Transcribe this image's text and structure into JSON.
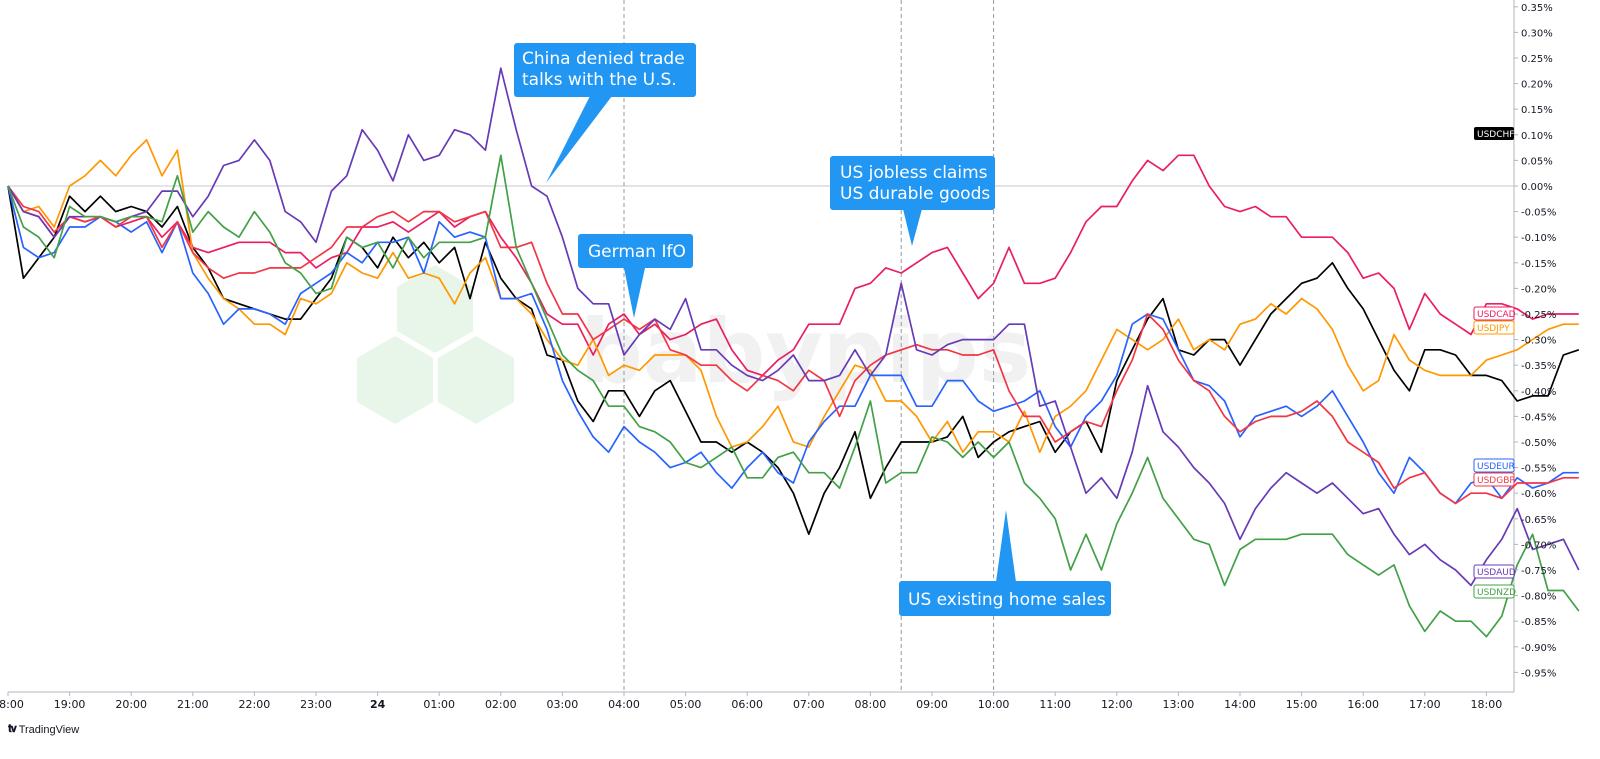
{
  "brand": {
    "name": "TradingView",
    "icon": "tradingview-logo-icon"
  },
  "watermark": {
    "text": "babypips",
    "icon": "hexagon-logo-icon"
  },
  "chart_data": {
    "type": "line",
    "y_unit": "%",
    "ylim": [
      -1.0,
      0.35
    ],
    "y_ticks": [
      "0.35%",
      "0.30%",
      "0.25%",
      "0.20%",
      "0.15%",
      "0.10%",
      "0.05%",
      "0.00%",
      "-0.05%",
      "-0.10%",
      "-0.15%",
      "-0.20%",
      "-0.25%",
      "-0.30%",
      "-0.35%",
      "-0.40%",
      "-0.45%",
      "-0.50%",
      "-0.55%",
      "-0.60%",
      "-0.65%",
      "-0.70%",
      "-0.75%",
      "-0.80%",
      "-0.85%",
      "-0.90%",
      "-0.95%"
    ],
    "y_tick_values": [
      0.35,
      0.3,
      0.25,
      0.2,
      0.15,
      0.1,
      0.05,
      0.0,
      -0.05,
      -0.1,
      -0.15,
      -0.2,
      -0.25,
      -0.3,
      -0.35,
      -0.4,
      -0.45,
      -0.5,
      -0.55,
      -0.6,
      -0.65,
      -0.7,
      -0.75,
      -0.8,
      -0.85,
      -0.9,
      -0.95
    ],
    "x_ticks": [
      "18:00",
      "19:00",
      "20:00",
      "21:00",
      "22:00",
      "23:00",
      "24",
      "01:00",
      "02:00",
      "03:00",
      "04:00",
      "05:00",
      "06:00",
      "07:00",
      "08:00",
      "09:00",
      "10:00",
      "11:00",
      "12:00",
      "13:00",
      "14:00",
      "15:00",
      "16:00",
      "17:00",
      "18:00"
    ],
    "x_range_hours": [
      0,
      24.5
    ],
    "zero_line": 0,
    "event_lines_hours": [
      10,
      14.5,
      16
    ],
    "annotations": [
      {
        "lines": [
          "China denied trade",
          "talks with the U.S."
        ],
        "pointer": "down-left"
      },
      {
        "lines": [
          "German IfO"
        ],
        "pointer": "down"
      },
      {
        "lines": [
          "US jobless claims",
          "US durable goods"
        ],
        "pointer": "down"
      },
      {
        "lines": [
          "US existing home sales"
        ],
        "pointer": "up"
      }
    ],
    "step_hours": 0.25,
    "series": [
      {
        "name": "USDCHF",
        "color": "#000000",
        "values": [
          0,
          -0.18,
          -0.14,
          -0.1,
          -0.02,
          -0.05,
          -0.02,
          -0.05,
          -0.04,
          -0.05,
          -0.08,
          -0.04,
          -0.12,
          -0.16,
          -0.22,
          -0.23,
          -0.24,
          -0.25,
          -0.26,
          -0.26,
          -0.22,
          -0.18,
          -0.1,
          -0.12,
          -0.16,
          -0.1,
          -0.14,
          -0.11,
          -0.15,
          -0.12,
          -0.22,
          -0.11,
          -0.18,
          -0.22,
          -0.24,
          -0.33,
          -0.34,
          -0.42,
          -0.46,
          -0.4,
          -0.4,
          -0.45,
          -0.4,
          -0.38,
          -0.44,
          -0.5,
          -0.5,
          -0.52,
          -0.5,
          -0.52,
          -0.55,
          -0.6,
          -0.68,
          -0.6,
          -0.55,
          -0.48,
          -0.61,
          -0.55,
          -0.5,
          -0.5,
          -0.5,
          -0.49,
          -0.45,
          -0.53,
          -0.5,
          -0.48,
          -0.47,
          -0.46,
          -0.52,
          -0.48,
          -0.46,
          -0.52,
          -0.38,
          -0.32,
          -0.26,
          -0.22,
          -0.32,
          -0.33,
          -0.3,
          -0.3,
          -0.35,
          -0.3,
          -0.25,
          -0.22,
          -0.19,
          -0.18,
          -0.15,
          -0.2,
          -0.24,
          -0.3,
          -0.36,
          -0.4,
          -0.32,
          -0.32,
          -0.33,
          -0.37,
          -0.37,
          -0.38,
          -0.42,
          -0.41,
          -0.41,
          -0.33,
          -0.32
        ]
      },
      {
        "name": "USDCAD",
        "color": "#e91e63",
        "values": [
          0,
          -0.05,
          -0.06,
          -0.1,
          -0.06,
          -0.07,
          -0.06,
          -0.08,
          -0.07,
          -0.06,
          -0.1,
          -0.07,
          -0.12,
          -0.13,
          -0.12,
          -0.11,
          -0.11,
          -0.11,
          -0.13,
          -0.13,
          -0.16,
          -0.14,
          -0.13,
          -0.08,
          -0.08,
          -0.07,
          -0.09,
          -0.07,
          -0.05,
          -0.08,
          -0.06,
          -0.05,
          -0.1,
          -0.14,
          -0.19,
          -0.25,
          -0.27,
          -0.27,
          -0.33,
          -0.27,
          -0.25,
          -0.29,
          -0.27,
          -0.3,
          -0.29,
          -0.27,
          -0.26,
          -0.32,
          -0.36,
          -0.37,
          -0.34,
          -0.32,
          -0.27,
          -0.27,
          -0.27,
          -0.2,
          -0.19,
          -0.16,
          -0.17,
          -0.15,
          -0.13,
          -0.12,
          -0.17,
          -0.22,
          -0.19,
          -0.12,
          -0.19,
          -0.19,
          -0.18,
          -0.13,
          -0.07,
          -0.04,
          -0.04,
          0.01,
          0.05,
          0.03,
          0.06,
          0.06,
          0.0,
          -0.04,
          -0.05,
          -0.04,
          -0.06,
          -0.06,
          -0.1,
          -0.1,
          -0.1,
          -0.13,
          -0.18,
          -0.17,
          -0.2,
          -0.28,
          -0.21,
          -0.25,
          -0.27,
          -0.29,
          -0.23,
          -0.23,
          -0.24,
          -0.26,
          -0.25,
          -0.25,
          -0.25
        ]
      },
      {
        "name": "USDJPY",
        "color": "#ff9800",
        "values": [
          0,
          -0.05,
          -0.04,
          -0.08,
          0.0,
          0.02,
          0.05,
          0.02,
          0.06,
          0.09,
          0.02,
          0.07,
          -0.13,
          -0.18,
          -0.22,
          -0.24,
          -0.27,
          -0.27,
          -0.29,
          -0.22,
          -0.23,
          -0.21,
          -0.15,
          -0.17,
          -0.18,
          -0.13,
          -0.18,
          -0.17,
          -0.18,
          -0.23,
          -0.17,
          -0.14,
          -0.22,
          -0.22,
          -0.25,
          -0.3,
          -0.34,
          -0.35,
          -0.3,
          -0.37,
          -0.35,
          -0.36,
          -0.33,
          -0.33,
          -0.33,
          -0.36,
          -0.45,
          -0.51,
          -0.5,
          -0.47,
          -0.43,
          -0.5,
          -0.51,
          -0.45,
          -0.4,
          -0.35,
          -0.36,
          -0.42,
          -0.42,
          -0.45,
          -0.5,
          -0.46,
          -0.52,
          -0.48,
          -0.48,
          -0.5,
          -0.44,
          -0.52,
          -0.45,
          -0.43,
          -0.4,
          -0.34,
          -0.28,
          -0.3,
          -0.32,
          -0.3,
          -0.26,
          -0.32,
          -0.3,
          -0.32,
          -0.27,
          -0.26,
          -0.23,
          -0.25,
          -0.22,
          -0.24,
          -0.28,
          -0.35,
          -0.4,
          -0.38,
          -0.29,
          -0.34,
          -0.36,
          -0.37,
          -0.37,
          -0.37,
          -0.34,
          -0.33,
          -0.32,
          -0.3,
          -0.28,
          -0.27,
          -0.27
        ]
      },
      {
        "name": "USDEUR",
        "color": "#2962ff",
        "values": [
          0,
          -0.12,
          -0.14,
          -0.13,
          -0.08,
          -0.08,
          -0.06,
          -0.07,
          -0.09,
          -0.07,
          -0.13,
          -0.07,
          -0.17,
          -0.21,
          -0.27,
          -0.24,
          -0.24,
          -0.25,
          -0.27,
          -0.21,
          -0.19,
          -0.17,
          -0.13,
          -0.15,
          -0.11,
          -0.11,
          -0.1,
          -0.17,
          -0.07,
          -0.1,
          -0.09,
          -0.1,
          -0.22,
          -0.22,
          -0.21,
          -0.28,
          -0.38,
          -0.44,
          -0.49,
          -0.52,
          -0.47,
          -0.5,
          -0.52,
          -0.55,
          -0.54,
          -0.52,
          -0.56,
          -0.59,
          -0.55,
          -0.52,
          -0.56,
          -0.58,
          -0.5,
          -0.46,
          -0.43,
          -0.43,
          -0.37,
          -0.37,
          -0.37,
          -0.43,
          -0.43,
          -0.38,
          -0.38,
          -0.42,
          -0.44,
          -0.43,
          -0.42,
          -0.4,
          -0.47,
          -0.51,
          -0.45,
          -0.42,
          -0.37,
          -0.27,
          -0.25,
          -0.26,
          -0.32,
          -0.38,
          -0.39,
          -0.42,
          -0.49,
          -0.45,
          -0.44,
          -0.43,
          -0.45,
          -0.43,
          -0.4,
          -0.45,
          -0.5,
          -0.56,
          -0.6,
          -0.53,
          -0.56,
          -0.6,
          -0.62,
          -0.58,
          -0.57,
          -0.61,
          -0.57,
          -0.59,
          -0.58,
          -0.56,
          -0.56
        ]
      },
      {
        "name": "USDGBP",
        "color": "#f23645",
        "values": [
          0,
          -0.04,
          -0.05,
          -0.09,
          -0.06,
          -0.07,
          -0.06,
          -0.08,
          -0.06,
          -0.06,
          -0.12,
          -0.07,
          -0.13,
          -0.16,
          -0.18,
          -0.17,
          -0.17,
          -0.16,
          -0.16,
          -0.16,
          -0.14,
          -0.12,
          -0.08,
          -0.08,
          -0.06,
          -0.05,
          -0.07,
          -0.05,
          -0.05,
          -0.07,
          -0.06,
          -0.05,
          -0.12,
          -0.12,
          -0.11,
          -0.19,
          -0.25,
          -0.25,
          -0.3,
          -0.28,
          -0.26,
          -0.28,
          -0.26,
          -0.32,
          -0.33,
          -0.35,
          -0.35,
          -0.38,
          -0.4,
          -0.37,
          -0.38,
          -0.4,
          -0.36,
          -0.38,
          -0.45,
          -0.38,
          -0.35,
          -0.33,
          -0.32,
          -0.31,
          -0.32,
          -0.32,
          -0.33,
          -0.33,
          -0.32,
          -0.4,
          -0.45,
          -0.45,
          -0.5,
          -0.48,
          -0.46,
          -0.47,
          -0.4,
          -0.34,
          -0.25,
          -0.28,
          -0.34,
          -0.38,
          -0.4,
          -0.45,
          -0.48,
          -0.46,
          -0.45,
          -0.45,
          -0.44,
          -0.42,
          -0.45,
          -0.5,
          -0.52,
          -0.54,
          -0.59,
          -0.57,
          -0.56,
          -0.6,
          -0.62,
          -0.6,
          -0.6,
          -0.61,
          -0.58,
          -0.58,
          -0.58,
          -0.57,
          -0.57
        ]
      },
      {
        "name": "USDAUD",
        "color": "#673ab7",
        "values": [
          0,
          -0.05,
          -0.06,
          -0.1,
          -0.06,
          -0.06,
          -0.06,
          -0.07,
          -0.06,
          -0.05,
          -0.01,
          -0.01,
          -0.06,
          -0.02,
          0.04,
          0.05,
          0.09,
          0.05,
          -0.05,
          -0.07,
          -0.11,
          -0.01,
          0.02,
          0.11,
          0.07,
          0.01,
          0.1,
          0.05,
          0.06,
          0.11,
          0.1,
          0.07,
          0.23,
          0.11,
          0.0,
          -0.02,
          -0.1,
          -0.2,
          -0.23,
          -0.23,
          -0.33,
          -0.29,
          -0.26,
          -0.28,
          -0.22,
          -0.32,
          -0.32,
          -0.35,
          -0.37,
          -0.38,
          -0.36,
          -0.33,
          -0.38,
          -0.38,
          -0.37,
          -0.32,
          -0.37,
          -0.33,
          -0.19,
          -0.32,
          -0.33,
          -0.31,
          -0.3,
          -0.3,
          -0.3,
          -0.27,
          -0.27,
          -0.43,
          -0.42,
          -0.51,
          -0.6,
          -0.57,
          -0.61,
          -0.52,
          -0.39,
          -0.48,
          -0.51,
          -0.55,
          -0.58,
          -0.62,
          -0.69,
          -0.63,
          -0.59,
          -0.56,
          -0.58,
          -0.6,
          -0.58,
          -0.61,
          -0.64,
          -0.63,
          -0.68,
          -0.72,
          -0.7,
          -0.73,
          -0.75,
          -0.78,
          -0.73,
          -0.69,
          -0.63,
          -0.71,
          -0.7,
          -0.69,
          -0.75
        ]
      },
      {
        "name": "USDNZD",
        "color": "#43a047",
        "values": [
          0,
          -0.08,
          -0.1,
          -0.14,
          -0.04,
          -0.06,
          -0.06,
          -0.07,
          -0.06,
          -0.06,
          -0.07,
          0.02,
          -0.09,
          -0.05,
          -0.08,
          -0.1,
          -0.05,
          -0.09,
          -0.15,
          -0.17,
          -0.21,
          -0.2,
          -0.1,
          -0.12,
          -0.11,
          -0.16,
          -0.1,
          -0.14,
          -0.11,
          -0.11,
          -0.11,
          -0.1,
          0.06,
          -0.12,
          -0.19,
          -0.26,
          -0.33,
          -0.36,
          -0.38,
          -0.43,
          -0.43,
          -0.47,
          -0.48,
          -0.5,
          -0.54,
          -0.55,
          -0.53,
          -0.51,
          -0.57,
          -0.57,
          -0.53,
          -0.52,
          -0.56,
          -0.56,
          -0.59,
          -0.51,
          -0.42,
          -0.58,
          -0.56,
          -0.56,
          -0.49,
          -0.5,
          -0.53,
          -0.5,
          -0.53,
          -0.5,
          -0.58,
          -0.61,
          -0.65,
          -0.75,
          -0.68,
          -0.75,
          -0.66,
          -0.6,
          -0.53,
          -0.61,
          -0.65,
          -0.69,
          -0.7,
          -0.78,
          -0.71,
          -0.69,
          -0.69,
          -0.69,
          -0.68,
          -0.68,
          -0.68,
          -0.72,
          -0.74,
          -0.76,
          -0.74,
          -0.82,
          -0.87,
          -0.83,
          -0.85,
          -0.85,
          -0.88,
          -0.84,
          -0.74,
          -0.68,
          -0.79,
          -0.79,
          -0.83
        ]
      }
    ]
  }
}
